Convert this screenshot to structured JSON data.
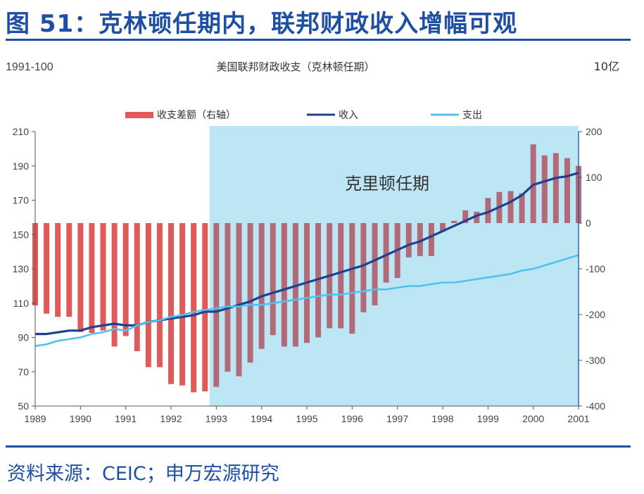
{
  "header": {
    "figure_title": "图 51：克林顿任期内，联邦财政收入增幅可观"
  },
  "footer": {
    "source": "资料来源：CEIC；申万宏源研究"
  },
  "chart_data": {
    "type": "bar+line",
    "title": "美国联邦财政收支（克林顿任期）",
    "left_axis_label": "1991-100",
    "right_axis_label": "10亿",
    "shaded_period_label": "克里顿任期",
    "shaded_period_start": 1992.85,
    "shaded_period_end": 2001,
    "x_range": [
      1989,
      2001
    ],
    "x_ticks": [
      "1989",
      "1990",
      "1991",
      "1992",
      "1993",
      "1994",
      "1995",
      "1996",
      "1997",
      "1998",
      "1999",
      "2000",
      "2001"
    ],
    "left_ylim": [
      50,
      210
    ],
    "left_ticks": [
      "50",
      "70",
      "90",
      "110",
      "130",
      "150",
      "170",
      "190",
      "210"
    ],
    "right_ylim": [
      -400,
      200
    ],
    "right_ticks": [
      "-400",
      "-300",
      "-200",
      "-100",
      "0",
      "100",
      "200"
    ],
    "legend": [
      "收支差额（右轴）",
      "收入",
      "支出"
    ],
    "colors": {
      "bars_before": "#e05a5a",
      "bars_during": "#b06a78",
      "revenue": "#1f3f8f",
      "expenditure": "#4fc3f0",
      "shade": "#bde6f5",
      "title": "#1f4fa3"
    },
    "bars": {
      "name": "收支差额（右轴）",
      "x": [
        1989.0,
        1989.25,
        1989.5,
        1989.75,
        1990.0,
        1990.25,
        1990.5,
        1990.75,
        1991.0,
        1991.25,
        1991.5,
        1991.75,
        1992.0,
        1992.25,
        1992.5,
        1992.75,
        1993.0,
        1993.25,
        1993.5,
        1993.75,
        1994.0,
        1994.25,
        1994.5,
        1994.75,
        1995.0,
        1995.25,
        1995.5,
        1995.75,
        1996.0,
        1996.25,
        1996.5,
        1996.75,
        1997.0,
        1997.25,
        1997.5,
        1997.75,
        1998.0,
        1998.25,
        1998.5,
        1998.75,
        1999.0,
        1999.25,
        1999.5,
        1999.75,
        2000.0,
        2000.25,
        2000.5,
        2000.75,
        2001.0
      ],
      "values": [
        -180,
        -198,
        -205,
        -205,
        -238,
        -240,
        -235,
        -270,
        -247,
        -280,
        -315,
        -315,
        -352,
        -355,
        -370,
        -368,
        -358,
        -325,
        -335,
        -305,
        -275,
        -245,
        -270,
        -270,
        -262,
        -250,
        -230,
        -230,
        -242,
        -195,
        -180,
        -130,
        -120,
        -75,
        -72,
        -72,
        -18,
        5,
        28,
        25,
        55,
        68,
        70,
        65,
        172,
        148,
        153,
        142,
        125
      ]
    },
    "series": [
      {
        "name": "收入",
        "x": [
          1989.0,
          1989.25,
          1989.5,
          1989.75,
          1990.0,
          1990.25,
          1990.5,
          1990.75,
          1991.0,
          1991.25,
          1991.5,
          1991.75,
          1992.0,
          1992.25,
          1992.5,
          1992.75,
          1993.0,
          1993.25,
          1993.5,
          1993.75,
          1994.0,
          1994.25,
          1994.5,
          1994.75,
          1995.0,
          1995.25,
          1995.5,
          1995.75,
          1996.0,
          1996.25,
          1996.5,
          1996.75,
          1997.0,
          1997.25,
          1997.5,
          1997.75,
          1998.0,
          1998.25,
          1998.5,
          1998.75,
          1999.0,
          1999.25,
          1999.5,
          1999.75,
          2000.0,
          2000.25,
          2000.5,
          2000.75,
          2001.0
        ],
        "values": [
          92,
          92,
          93,
          94,
          94,
          96,
          97,
          98,
          97,
          97,
          99,
          100,
          101,
          102,
          103,
          105,
          105,
          107,
          109,
          111,
          114,
          116,
          118,
          120,
          122,
          124,
          126,
          128,
          130,
          132,
          135,
          138,
          141,
          144,
          146,
          149,
          152,
          155,
          158,
          161,
          163,
          166,
          169,
          173,
          179,
          181,
          183,
          184,
          186
        ]
      },
      {
        "name": "支出",
        "x": [
          1989.0,
          1989.25,
          1989.5,
          1989.75,
          1990.0,
          1990.25,
          1990.5,
          1990.75,
          1991.0,
          1991.25,
          1991.5,
          1991.75,
          1992.0,
          1992.25,
          1992.5,
          1992.75,
          1993.0,
          1993.25,
          1993.5,
          1993.75,
          1994.0,
          1994.25,
          1994.5,
          1994.75,
          1995.0,
          1995.25,
          1995.5,
          1995.75,
          1996.0,
          1996.25,
          1996.5,
          1996.75,
          1997.0,
          1997.25,
          1997.5,
          1997.75,
          1998.0,
          1998.25,
          1998.5,
          1998.75,
          1999.0,
          1999.25,
          1999.5,
          1999.75,
          2000.0,
          2000.25,
          2000.5,
          2000.75,
          2001.0
        ],
        "values": [
          85,
          86,
          88,
          89,
          90,
          92,
          93,
          95,
          94,
          97,
          99,
          100,
          102,
          103,
          105,
          106,
          107,
          108,
          108,
          109,
          109,
          110,
          111,
          112,
          113,
          114,
          115,
          115,
          116,
          117,
          118,
          118,
          119,
          120,
          120,
          121,
          122,
          122,
          123,
          124,
          125,
          126,
          127,
          129,
          130,
          132,
          134,
          136,
          138
        ]
      }
    ]
  }
}
